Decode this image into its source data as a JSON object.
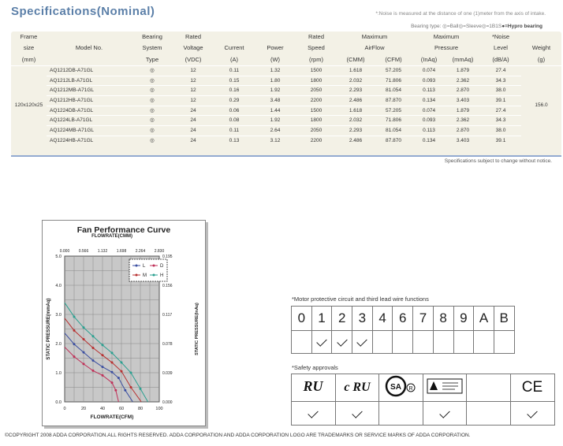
{
  "header": {
    "title": "Specifications(Nominal)",
    "note": "*:Noise is measured at the distance of one (1)meter from the axis of intake."
  },
  "bearing_legend": {
    "text": "Bearing type: ◎=Ball◎=Sleeve◎=1B1S",
    "hypro": "●=Hypro bearing"
  },
  "table": {
    "headers": {
      "frame": [
        "Frame",
        "size",
        "(mm)"
      ],
      "model": "Model No.",
      "bearing": [
        "Bearing",
        "System",
        "Type"
      ],
      "rated_voltage": [
        "Rated",
        "Voltage",
        "(VDC)"
      ],
      "current": [
        "Current",
        "(A)"
      ],
      "power": [
        "Power",
        "(W)"
      ],
      "rated_speed": [
        "Rated",
        "Speed",
        "(rpm)"
      ],
      "airflow": [
        "Maximum",
        "AirFlow"
      ],
      "airflow_units": [
        "(CMM)",
        "(CFM)"
      ],
      "pressure": [
        "Maximum",
        "Pressure"
      ],
      "pressure_units": [
        "(InAq)",
        "(mmAq)"
      ],
      "noise": [
        "*Noise",
        "Level",
        "(dB/A)"
      ],
      "weight": [
        "Weight",
        "(g)"
      ]
    },
    "frame_size": "120x120x25",
    "weight": "156.0",
    "rows": [
      {
        "model": "AQ1212DB-A71GL",
        "bearing": "◎",
        "voltage": "12",
        "current": "0.11",
        "power": "1.32",
        "speed": "1500",
        "cmm": "1.618",
        "cfm": "57.205",
        "inaq": "0.074",
        "mmaq": "1.879",
        "noise": "27.4"
      },
      {
        "model": "AQ1212LB-A71GL",
        "bearing": "◎",
        "voltage": "12",
        "current": "0.15",
        "power": "1.80",
        "speed": "1800",
        "cmm": "2.032",
        "cfm": "71.806",
        "inaq": "0.093",
        "mmaq": "2.362",
        "noise": "34.3"
      },
      {
        "model": "AQ1212MB-A71GL",
        "bearing": "◎",
        "voltage": "12",
        "current": "0.16",
        "power": "1.92",
        "speed": "2050",
        "cmm": "2.293",
        "cfm": "81.054",
        "inaq": "0.113",
        "mmaq": "2.870",
        "noise": "38.0"
      },
      {
        "model": "AQ1212HB-A71GL",
        "bearing": "◎",
        "voltage": "12",
        "current": "0.29",
        "power": "3.48",
        "speed": "2200",
        "cmm": "2.486",
        "cfm": "87.870",
        "inaq": "0.134",
        "mmaq": "3.403",
        "noise": "39.1"
      },
      {
        "model": "AQ1224DB-A71GL",
        "bearing": "◎",
        "voltage": "24",
        "current": "0.06",
        "power": "1.44",
        "speed": "1500",
        "cmm": "1.618",
        "cfm": "57.205",
        "inaq": "0.074",
        "mmaq": "1.879",
        "noise": "27.4"
      },
      {
        "model": "AQ1224LB-A71GL",
        "bearing": "◎",
        "voltage": "24",
        "current": "0.08",
        "power": "1.92",
        "speed": "1800",
        "cmm": "2.032",
        "cfm": "71.806",
        "inaq": "0.093",
        "mmaq": "2.362",
        "noise": "34.3"
      },
      {
        "model": "AQ1224MB-A71GL",
        "bearing": "◎",
        "voltage": "24",
        "current": "0.11",
        "power": "2.64",
        "speed": "2050",
        "cmm": "2.293",
        "cfm": "81.054",
        "inaq": "0.113",
        "mmaq": "2.870",
        "noise": "38.0"
      },
      {
        "model": "AQ1224HB-A71GL",
        "bearing": "◎",
        "voltage": "24",
        "current": "0.13",
        "power": "3.12",
        "speed": "2200",
        "cmm": "2.486",
        "cfm": "87.870",
        "inaq": "0.134",
        "mmaq": "3.403",
        "noise": "39.1"
      }
    ],
    "footer_note": "Specifications subject to change without notice."
  },
  "chart_data": {
    "type": "line",
    "title": "Fan Performance Curve",
    "top_axis_label": "FLOWRATE(CMM)",
    "top_ticks": [
      "0.000",
      "0.566",
      "1.132",
      "1.698",
      "2.264",
      "2.830"
    ],
    "xlabel": "FLOWRATE(CFM)",
    "x_ticks": [
      "0",
      "20",
      "40",
      "60",
      "80",
      "100"
    ],
    "xlim": [
      0,
      100
    ],
    "ylabel": "STATIC PRESSURE(mmAq)",
    "y_ticks": [
      "0.0",
      "1.0",
      "2.0",
      "3.0",
      "4.0",
      "5.0"
    ],
    "ylim": [
      0,
      5
    ],
    "y2label": "STATIC PRESSURE(InAq)",
    "y2_ticks": [
      "0.000",
      "0.039",
      "0.078",
      "0.117",
      "0.156",
      "0.195"
    ],
    "grid": true,
    "legend_position": "top-right",
    "series": [
      {
        "name": "L",
        "color": "#3a4ea0",
        "x": [
          0,
          10,
          20,
          30,
          40,
          50,
          57,
          64,
          72
        ],
        "y": [
          2.36,
          1.98,
          1.7,
          1.42,
          1.2,
          1.02,
          0.82,
          0.4,
          0.0
        ]
      },
      {
        "name": "D",
        "color": "#c03058",
        "x": [
          0,
          10,
          20,
          30,
          40,
          50,
          54,
          57
        ],
        "y": [
          1.88,
          1.55,
          1.3,
          1.07,
          0.91,
          0.66,
          0.4,
          0.0
        ]
      },
      {
        "name": "M",
        "color": "#b83030",
        "x": [
          0,
          10,
          20,
          30,
          40,
          50,
          60,
          70,
          81
        ],
        "y": [
          2.87,
          2.45,
          2.15,
          1.85,
          1.6,
          1.35,
          1.05,
          0.5,
          0.0
        ]
      },
      {
        "name": "H",
        "color": "#2aa090",
        "x": [
          0,
          10,
          20,
          30,
          40,
          50,
          60,
          70,
          80,
          88
        ],
        "y": [
          3.4,
          2.92,
          2.55,
          2.25,
          1.95,
          1.68,
          1.35,
          1.0,
          0.45,
          0.0
        ]
      }
    ]
  },
  "motor_protective": {
    "label": "*Motor protective circuit and third lead wire functions",
    "codes": [
      "0",
      "1",
      "2",
      "3",
      "4",
      "6",
      "7",
      "8",
      "9",
      "A",
      "B"
    ],
    "checked": [
      false,
      true,
      true,
      true,
      false,
      false,
      false,
      false,
      false,
      false,
      false
    ]
  },
  "safety": {
    "label": "*Safety approvals",
    "logos": [
      "ul-icon",
      "cul-icon",
      "csa-icon",
      "tuv-icon",
      "empty",
      "ce-icon"
    ],
    "logo_text": [
      "RU",
      "c RU",
      "SA",
      "",
      "",
      "CE"
    ],
    "checked": [
      true,
      true,
      false,
      true,
      false,
      true
    ]
  },
  "footer": {
    "copyright": "©COPYRIGHT 2008 ADDA CORPORATION.ALL RIGHTS RESERVED. ADDA CORPORATION AND ADDA CORPORATION LOGO ARE TRADEMARKS OR SERVICE MARKS OF ADDA CORPORATION."
  }
}
